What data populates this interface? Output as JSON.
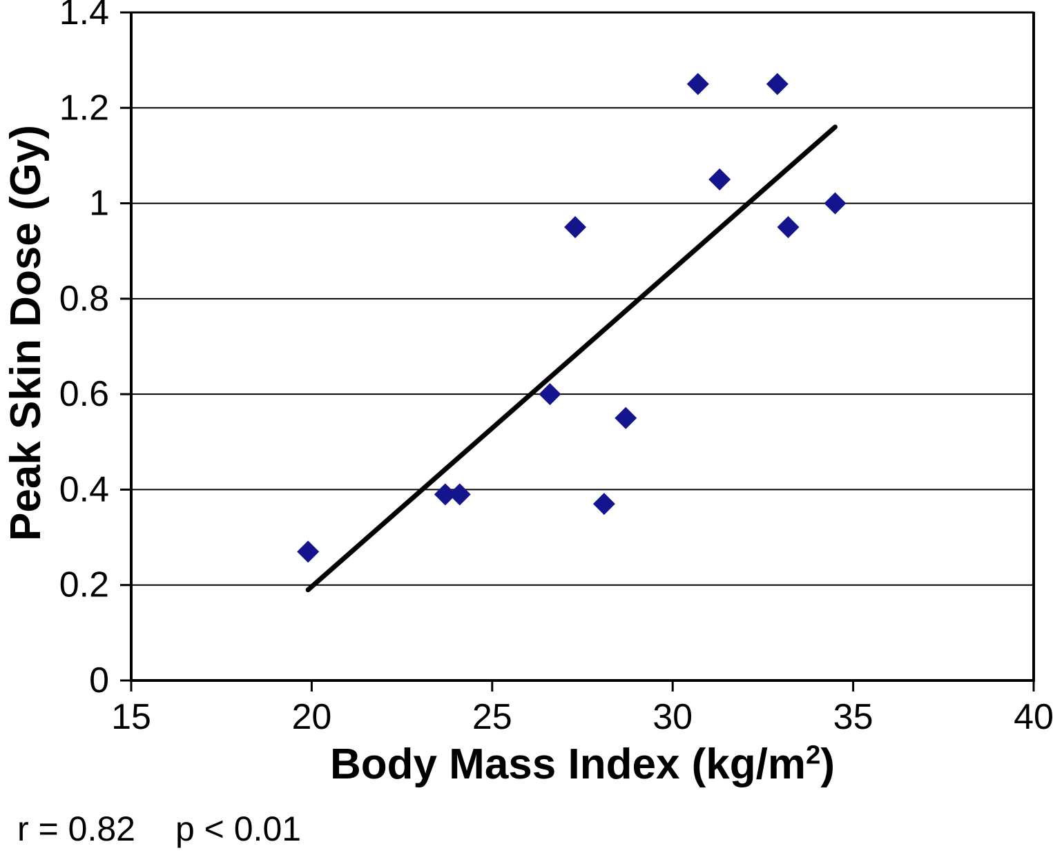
{
  "figure": {
    "background": "#ffffff",
    "text_color": "#000000"
  },
  "chart_data": {
    "type": "scatter",
    "title": "",
    "xlabel": "Body Mass Index (kg/m2)",
    "xlabel_parts": {
      "prefix": "Body Mass Index (kg/m",
      "sup": "2",
      "suffix": ")"
    },
    "ylabel": "Peak Skin Dose (Gy)",
    "xlim": [
      15,
      40
    ],
    "ylim": [
      0,
      1.4
    ],
    "grid": "horizontal",
    "legend": "none",
    "x_ticks": [
      {
        "value": 15,
        "label": "15"
      },
      {
        "value": 20,
        "label": "20"
      },
      {
        "value": 25,
        "label": "25"
      },
      {
        "value": 30,
        "label": "30"
      },
      {
        "value": 35,
        "label": "35"
      },
      {
        "value": 40,
        "label": "40"
      }
    ],
    "y_ticks": [
      {
        "value": 0,
        "label": "0"
      },
      {
        "value": 0.2,
        "label": "0.2"
      },
      {
        "value": 0.4,
        "label": "0.4"
      },
      {
        "value": 0.6,
        "label": "0.6"
      },
      {
        "value": 0.8,
        "label": "0.8"
      },
      {
        "value": 1,
        "label": "1"
      },
      {
        "value": 1.2,
        "label": "1.2"
      },
      {
        "value": 1.4,
        "label": "1.4"
      }
    ],
    "marker": {
      "shape": "diamond",
      "color": "#14148C",
      "size": 32
    },
    "points": [
      {
        "x": 19.9,
        "y": 0.27
      },
      {
        "x": 23.7,
        "y": 0.39
      },
      {
        "x": 24.1,
        "y": 0.39
      },
      {
        "x": 26.6,
        "y": 0.6
      },
      {
        "x": 27.3,
        "y": 0.95
      },
      {
        "x": 28.1,
        "y": 0.37
      },
      {
        "x": 28.7,
        "y": 0.55
      },
      {
        "x": 30.7,
        "y": 1.25
      },
      {
        "x": 31.3,
        "y": 1.05
      },
      {
        "x": 32.9,
        "y": 1.25
      },
      {
        "x": 33.2,
        "y": 0.95
      },
      {
        "x": 34.5,
        "y": 1.0
      }
    ],
    "trendline": {
      "x1": 19.9,
      "y1": 0.19,
      "x2": 34.5,
      "y2": 1.16,
      "color": "#000000"
    },
    "annotations": {
      "r": "r = 0.82",
      "p": "p < 0.01"
    }
  }
}
